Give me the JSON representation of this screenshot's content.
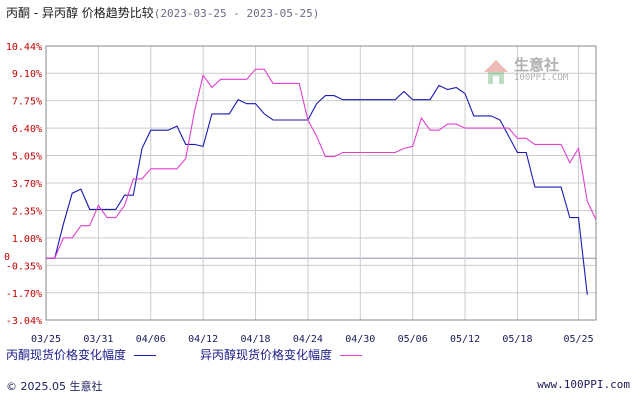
{
  "header": {
    "title": "丙酮 - 异丙醇 价格趋势比较",
    "date_range": "(2023-03-25 - 2023-05-25)"
  },
  "footer": {
    "copyright": "© 2025.05 生意社",
    "url": "www.100PPI.com"
  },
  "watermark": {
    "brand": "生意社",
    "site": "100PPI.COM"
  },
  "colors": {
    "series_1": "#1a1ab4",
    "series_2": "#e040d0",
    "ytick": "#c00000",
    "grid": "#cccccc",
    "zero": "#9090b0"
  },
  "chart_data": {
    "type": "line",
    "ylim": [
      -3.04,
      10.44
    ],
    "grid": true,
    "legend_position": "bottom",
    "y_ticks": [
      "10.44%",
      "9.10%",
      "7.75%",
      "6.40%",
      "5.05%",
      "3.70%",
      "2.35%",
      "1.00%",
      "-0.35%",
      "-1.70%",
      "-3.04%"
    ],
    "y_tick_values": [
      10.44,
      9.1,
      7.75,
      6.4,
      5.05,
      3.7,
      2.35,
      1.0,
      -0.35,
      -1.7,
      -3.04
    ],
    "zero_label": "0",
    "x_ticks": [
      "03/25",
      "03/31",
      "04/06",
      "04/12",
      "04/18",
      "04/24",
      "04/30",
      "05/06",
      "05/12",
      "05/18",
      "05/25"
    ],
    "x_tick_values": [
      0,
      6,
      12,
      18,
      24,
      30,
      36,
      42,
      48,
      54,
      61
    ],
    "series": [
      {
        "name": "丙酮现货价格变化幅度",
        "points": [
          [
            0,
            0
          ],
          [
            1,
            0
          ],
          [
            2,
            1.7
          ],
          [
            3,
            3.2
          ],
          [
            4,
            3.4
          ],
          [
            5,
            2.4
          ],
          [
            6,
            2.4
          ],
          [
            7,
            2.4
          ],
          [
            8,
            2.4
          ],
          [
            9,
            3.1
          ],
          [
            10,
            3.1
          ],
          [
            11,
            5.4
          ],
          [
            12,
            6.3
          ],
          [
            13,
            6.3
          ],
          [
            14,
            6.3
          ],
          [
            15,
            6.5
          ],
          [
            16,
            5.6
          ],
          [
            17,
            5.6
          ],
          [
            18,
            5.5
          ],
          [
            19,
            7.1
          ],
          [
            20,
            7.1
          ],
          [
            21,
            7.1
          ],
          [
            22,
            7.8
          ],
          [
            23,
            7.6
          ],
          [
            24,
            7.6
          ],
          [
            25,
            7.1
          ],
          [
            26,
            6.8
          ],
          [
            27,
            6.8
          ],
          [
            28,
            6.8
          ],
          [
            29,
            6.8
          ],
          [
            30,
            6.8
          ],
          [
            31,
            7.6
          ],
          [
            32,
            8.0
          ],
          [
            33,
            8.0
          ],
          [
            34,
            7.8
          ],
          [
            35,
            7.8
          ],
          [
            36,
            7.8
          ],
          [
            37,
            7.8
          ],
          [
            38,
            7.8
          ],
          [
            39,
            7.8
          ],
          [
            40,
            7.8
          ],
          [
            41,
            8.2
          ],
          [
            42,
            7.8
          ],
          [
            43,
            7.8
          ],
          [
            44,
            7.8
          ],
          [
            45,
            8.5
          ],
          [
            46,
            8.3
          ],
          [
            47,
            8.4
          ],
          [
            48,
            8.1
          ],
          [
            49,
            7.0
          ],
          [
            50,
            7.0
          ],
          [
            51,
            7.0
          ],
          [
            52,
            6.8
          ],
          [
            53,
            6.0
          ],
          [
            54,
            5.2
          ],
          [
            55,
            5.2
          ],
          [
            56,
            3.5
          ],
          [
            57,
            3.5
          ],
          [
            58,
            3.5
          ],
          [
            59,
            3.5
          ],
          [
            60,
            2.0
          ],
          [
            61,
            2.0
          ],
          [
            62,
            -1.8
          ]
        ]
      },
      {
        "name": "异丙醇现货价格变化幅度",
        "points": [
          [
            0,
            0
          ],
          [
            1,
            0
          ],
          [
            2,
            1.0
          ],
          [
            3,
            1.0
          ],
          [
            4,
            1.6
          ],
          [
            5,
            1.6
          ],
          [
            6,
            2.6
          ],
          [
            7,
            2.0
          ],
          [
            8,
            2.0
          ],
          [
            9,
            2.6
          ],
          [
            10,
            3.9
          ],
          [
            11,
            3.9
          ],
          [
            12,
            4.4
          ],
          [
            13,
            4.4
          ],
          [
            14,
            4.4
          ],
          [
            15,
            4.4
          ],
          [
            16,
            4.9
          ],
          [
            17,
            7.2
          ],
          [
            18,
            9.0
          ],
          [
            19,
            8.4
          ],
          [
            20,
            8.8
          ],
          [
            21,
            8.8
          ],
          [
            22,
            8.8
          ],
          [
            23,
            8.8
          ],
          [
            24,
            9.3
          ],
          [
            25,
            9.3
          ],
          [
            26,
            8.6
          ],
          [
            27,
            8.6
          ],
          [
            28,
            8.6
          ],
          [
            29,
            8.6
          ],
          [
            30,
            6.8
          ],
          [
            31,
            6.0
          ],
          [
            32,
            5.0
          ],
          [
            33,
            5.0
          ],
          [
            34,
            5.2
          ],
          [
            35,
            5.2
          ],
          [
            36,
            5.2
          ],
          [
            37,
            5.2
          ],
          [
            38,
            5.2
          ],
          [
            39,
            5.2
          ],
          [
            40,
            5.2
          ],
          [
            41,
            5.4
          ],
          [
            42,
            5.5
          ],
          [
            43,
            6.9
          ],
          [
            44,
            6.3
          ],
          [
            45,
            6.3
          ],
          [
            46,
            6.6
          ],
          [
            47,
            6.6
          ],
          [
            48,
            6.4
          ],
          [
            49,
            6.4
          ],
          [
            50,
            6.4
          ],
          [
            51,
            6.4
          ],
          [
            52,
            6.4
          ],
          [
            53,
            6.4
          ],
          [
            54,
            5.9
          ],
          [
            55,
            5.9
          ],
          [
            56,
            5.6
          ],
          [
            57,
            5.6
          ],
          [
            58,
            5.6
          ],
          [
            59,
            5.6
          ],
          [
            60,
            4.7
          ],
          [
            61,
            5.4
          ],
          [
            62,
            2.8
          ],
          [
            63,
            1.9
          ]
        ]
      }
    ]
  }
}
